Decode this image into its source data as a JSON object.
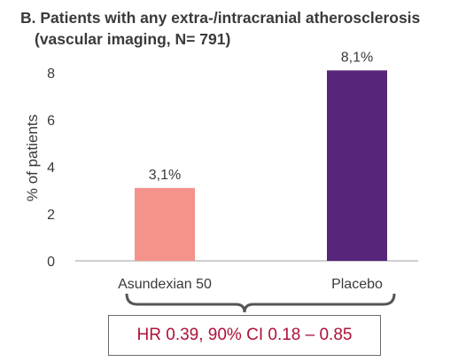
{
  "title_line1": "B. Patients with any extra-/intracranial atherosclerosis",
  "title_line2": "(vascular imaging, N= 791)",
  "hr_text": "HR 0.39, 90% CI 0.18 – 0.85",
  "colors": {
    "asundexian": "#f4938b",
    "placebo": "#57267a",
    "axis": "#bfbfbf",
    "text": "#3a3a3a",
    "hr_text": "#b0103a"
  },
  "chart_data": {
    "type": "bar",
    "categories": [
      "Asundexian 50",
      "Placebo"
    ],
    "values": [
      3.1,
      8.1
    ],
    "data_labels": [
      "3,1%",
      "8,1%"
    ],
    "title": "B. Patients with any extra-/intracranial atherosclerosis (vascular imaging, N= 791)",
    "xlabel": "",
    "ylabel": "% of patients",
    "ylim": [
      0,
      8.5
    ],
    "yticks": [
      0,
      2,
      4,
      6,
      8
    ],
    "grid": false,
    "legend": "none"
  }
}
